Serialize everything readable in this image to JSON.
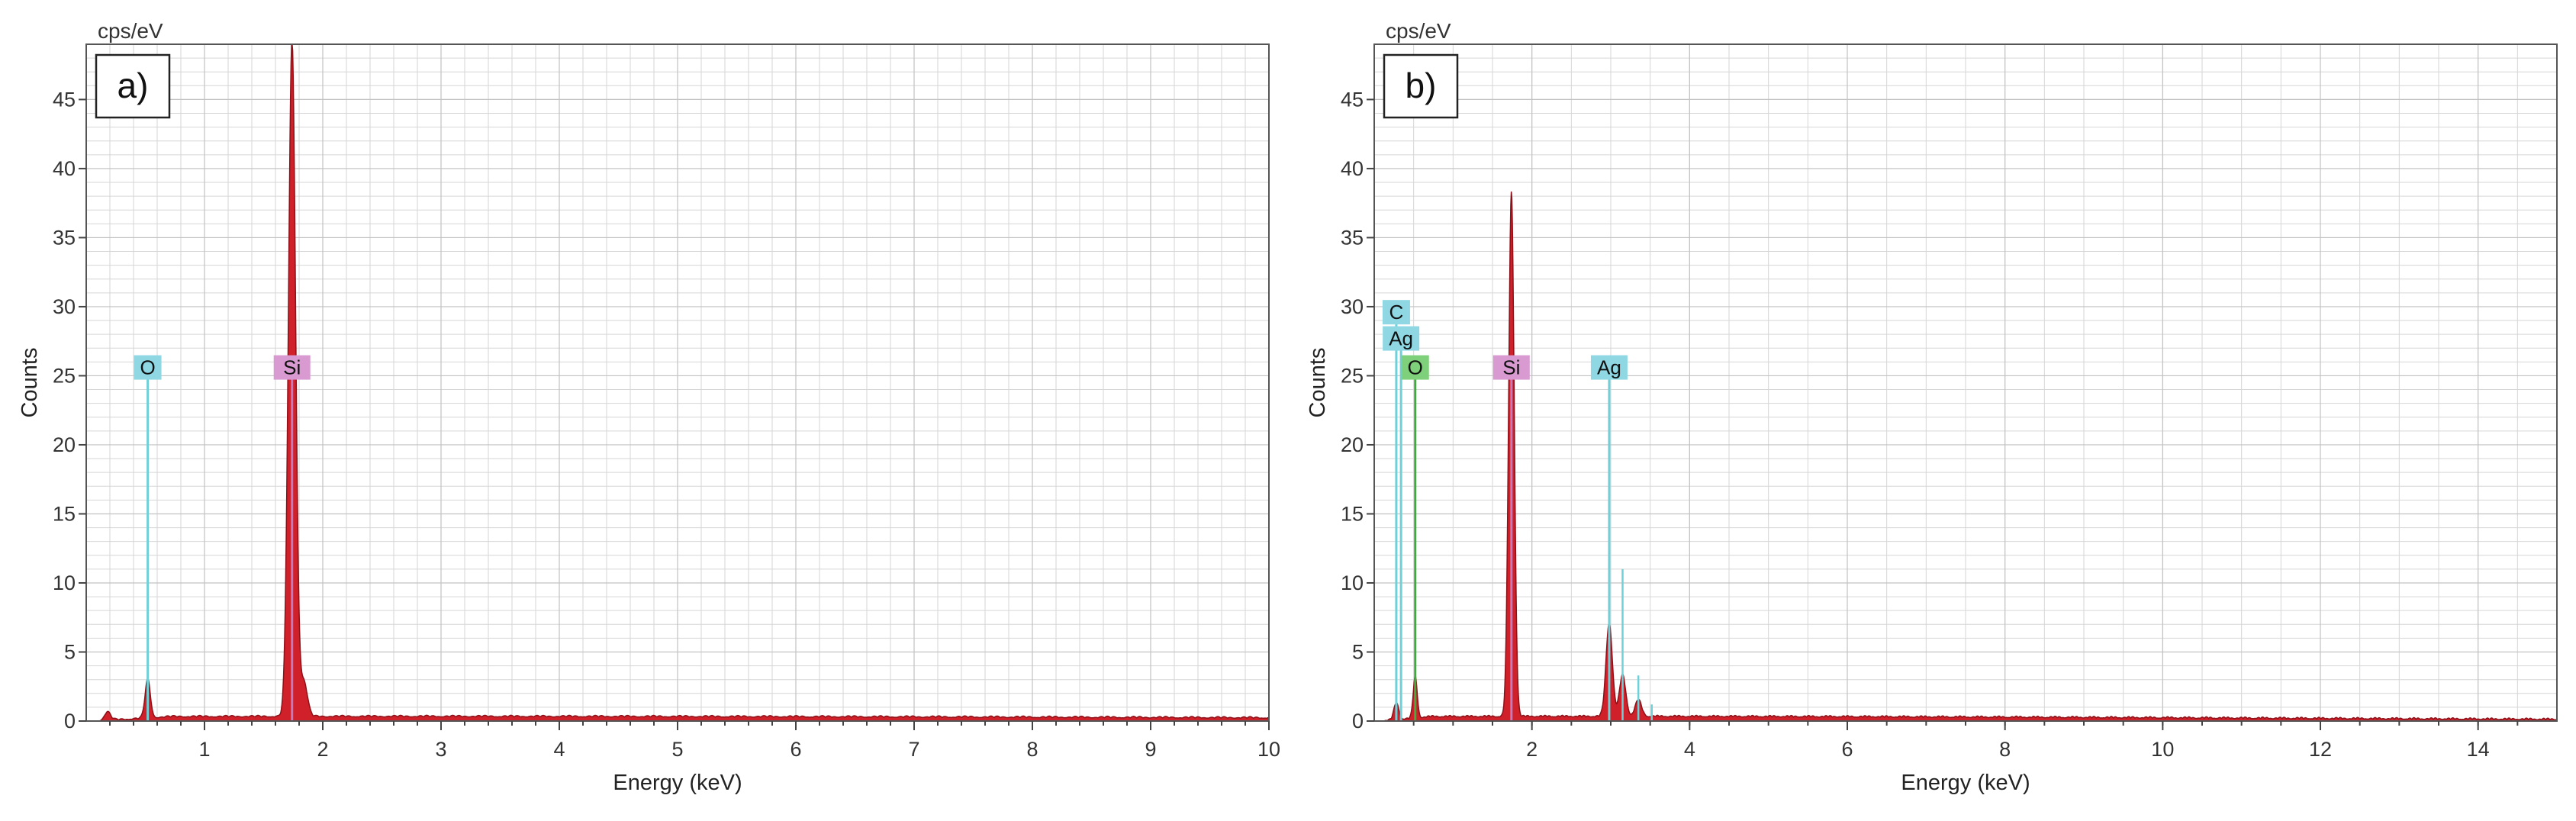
{
  "chart_data": [
    {
      "type": "area",
      "panel_label": "a)",
      "unit_label": "cps/eV",
      "xlabel": "Energy (keV)",
      "ylabel": "Counts",
      "xlim": [
        0,
        10
      ],
      "ylim": [
        0,
        49
      ],
      "x_ticks": [
        1,
        2,
        3,
        4,
        5,
        6,
        7,
        8,
        9,
        10
      ],
      "y_ticks": [
        0,
        5,
        10,
        15,
        20,
        25,
        30,
        35,
        40,
        45
      ],
      "grid": true,
      "fill_color": "#d0202a",
      "outline_color": "#8c1118",
      "baseline_level": 0.3,
      "peaks": [
        {
          "x": 0.18,
          "y": 0.6,
          "w": 0.025
        },
        {
          "x": 0.52,
          "y": 2.8,
          "w": 0.022
        },
        {
          "x": 1.74,
          "y": 49.0,
          "w": 0.03
        },
        {
          "x": 1.84,
          "y": 2.5,
          "w": 0.03
        }
      ],
      "markers": [
        {
          "label": "O",
          "x": 0.52,
          "y_top": 25.6,
          "color": "#70d0d8",
          "box_color": "#8fd8e3"
        },
        {
          "label": "Si",
          "x": 1.74,
          "y_top": 25.6,
          "color": "#c07bbd",
          "box_color": "#d89ad0"
        }
      ]
    },
    {
      "type": "area",
      "panel_label": "b)",
      "unit_label": "cps/eV",
      "xlabel": "Energy (keV)",
      "ylabel": "Counts",
      "xlim": [
        0,
        15
      ],
      "ylim": [
        0,
        49
      ],
      "x_ticks": [
        2,
        4,
        6,
        8,
        10,
        12,
        14
      ],
      "y_ticks": [
        0,
        5,
        10,
        15,
        20,
        25,
        30,
        35,
        40,
        45
      ],
      "grid": true,
      "fill_color": "#d0202a",
      "outline_color": "#8c1118",
      "baseline_level": 0.3,
      "peaks": [
        {
          "x": 0.28,
          "y": 1.2,
          "w": 0.03
        },
        {
          "x": 0.52,
          "y": 3.0,
          "w": 0.025
        },
        {
          "x": 1.74,
          "y": 38.0,
          "w": 0.035
        },
        {
          "x": 2.98,
          "y": 6.8,
          "w": 0.04
        },
        {
          "x": 3.15,
          "y": 3.0,
          "w": 0.04
        },
        {
          "x": 3.35,
          "y": 1.2,
          "w": 0.04
        }
      ],
      "markers": [
        {
          "label": "C",
          "x": 0.28,
          "y_top": 29.6,
          "color": "#70d0d8",
          "box_color": "#8fd8e3"
        },
        {
          "label": "Ag",
          "x": 0.34,
          "y_top": 27.7,
          "color": "#70d0d8",
          "box_color": "#8fd8e3"
        },
        {
          "label": "O",
          "x": 0.52,
          "y_top": 25.6,
          "color": "#3cae3c",
          "box_color": "#7fd07a"
        },
        {
          "label": "Si",
          "x": 1.74,
          "y_top": 25.6,
          "color": "#c07bbd",
          "box_color": "#d89ad0"
        },
        {
          "label": "Ag",
          "x": 2.98,
          "y_top": 25.6,
          "color": "#70d0d8",
          "box_color": "#8fd8e3"
        }
      ],
      "extra_lines": [
        {
          "x": 3.15,
          "y": 11.0,
          "color": "#70d0d8"
        },
        {
          "x": 3.35,
          "y": 3.3,
          "color": "#70d0d8"
        },
        {
          "x": 3.52,
          "y": 1.2,
          "color": "#70d0d8"
        }
      ]
    }
  ]
}
